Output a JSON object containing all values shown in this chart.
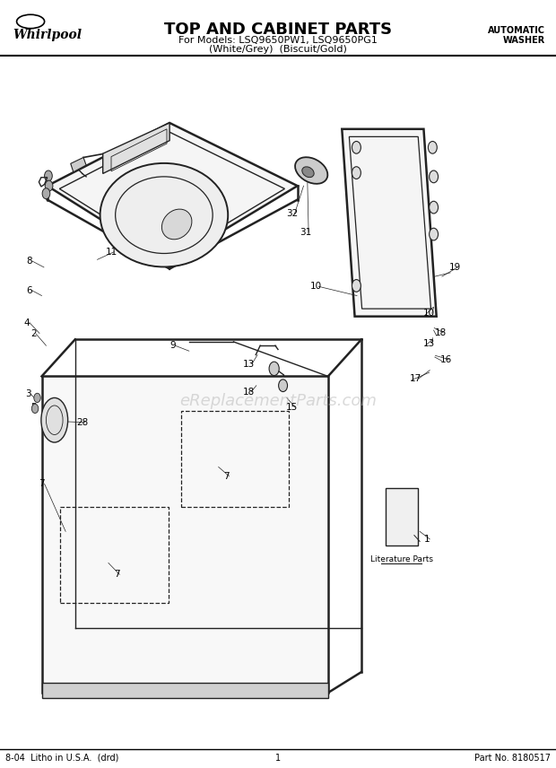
{
  "title": "TOP AND CABINET PARTS",
  "subtitle1": "For Models: LSQ9650PW1, LSQ9650PG1",
  "subtitle2": "(White/Grey)  (Biscuit/Gold)",
  "top_right_line1": "AUTOMATIC",
  "top_right_line2": "WASHER",
  "footer_left": "8-04  Litho in U.S.A.  (drd)",
  "footer_center": "1",
  "footer_right": "Part No. 8180517",
  "watermark": "eReplacementParts.com",
  "bg_color": "#ffffff",
  "line_color": "#000000",
  "diagram_color": "#222222",
  "fig_width": 6.2,
  "fig_height": 8.56,
  "dpi": 100
}
